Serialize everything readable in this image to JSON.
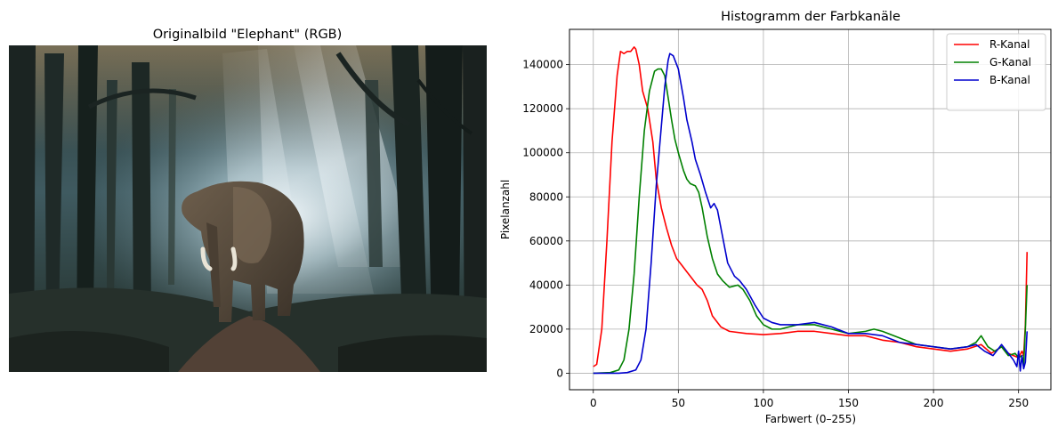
{
  "left_panel": {
    "title": "Originalbild \"Elephant\" (RGB)"
  },
  "chart_data": {
    "type": "line",
    "title": "Histogramm der Farbkanäle",
    "xlabel": "Farbwert (0–255)",
    "ylabel": "Pixelanzahl",
    "xlim": [
      -14,
      269
    ],
    "ylim": [
      -7500,
      156000
    ],
    "xticks": [
      0,
      50,
      100,
      150,
      200,
      250
    ],
    "yticks": [
      0,
      20000,
      40000,
      60000,
      80000,
      100000,
      120000,
      140000
    ],
    "grid": true,
    "legend_position": "top-right",
    "series": [
      {
        "name": "R-Kanal",
        "color": "#ff0000",
        "points": [
          [
            0,
            3000
          ],
          [
            2,
            4000
          ],
          [
            5,
            20000
          ],
          [
            8,
            60000
          ],
          [
            11,
            105000
          ],
          [
            14,
            135000
          ],
          [
            16,
            146000
          ],
          [
            18,
            145000
          ],
          [
            20,
            146000
          ],
          [
            22,
            146000
          ],
          [
            24,
            148000
          ],
          [
            25,
            147000
          ],
          [
            27,
            140000
          ],
          [
            29,
            128000
          ],
          [
            32,
            120000
          ],
          [
            35,
            105000
          ],
          [
            37,
            88000
          ],
          [
            40,
            75000
          ],
          [
            43,
            66000
          ],
          [
            46,
            58000
          ],
          [
            49,
            52000
          ],
          [
            52,
            49000
          ],
          [
            55,
            46000
          ],
          [
            58,
            43000
          ],
          [
            61,
            40000
          ],
          [
            64,
            38000
          ],
          [
            67,
            33000
          ],
          [
            70,
            26000
          ],
          [
            75,
            21000
          ],
          [
            80,
            19000
          ],
          [
            90,
            18000
          ],
          [
            100,
            17500
          ],
          [
            110,
            18000
          ],
          [
            120,
            19000
          ],
          [
            130,
            19000
          ],
          [
            140,
            18000
          ],
          [
            150,
            17000
          ],
          [
            160,
            17000
          ],
          [
            170,
            15000
          ],
          [
            180,
            14000
          ],
          [
            190,
            12000
          ],
          [
            200,
            11000
          ],
          [
            210,
            10000
          ],
          [
            220,
            11000
          ],
          [
            228,
            13000
          ],
          [
            234,
            9000
          ],
          [
            240,
            12000
          ],
          [
            244,
            9000
          ],
          [
            247,
            8000
          ],
          [
            250,
            7000
          ],
          [
            252,
            10000
          ],
          [
            253,
            8000
          ],
          [
            254,
            22000
          ],
          [
            255,
            55000
          ]
        ]
      },
      {
        "name": "G-Kanal",
        "color": "#008000",
        "points": [
          [
            0,
            0
          ],
          [
            10,
            300
          ],
          [
            15,
            1500
          ],
          [
            18,
            6000
          ],
          [
            21,
            20000
          ],
          [
            24,
            45000
          ],
          [
            27,
            80000
          ],
          [
            30,
            110000
          ],
          [
            33,
            128000
          ],
          [
            36,
            137000
          ],
          [
            38,
            138000
          ],
          [
            40,
            138000
          ],
          [
            42,
            135000
          ],
          [
            44,
            125000
          ],
          [
            46,
            115000
          ],
          [
            48,
            106000
          ],
          [
            50,
            100000
          ],
          [
            53,
            92000
          ],
          [
            55,
            88000
          ],
          [
            57,
            86000
          ],
          [
            60,
            85000
          ],
          [
            62,
            82000
          ],
          [
            64,
            75000
          ],
          [
            67,
            62000
          ],
          [
            70,
            52000
          ],
          [
            73,
            45000
          ],
          [
            76,
            42000
          ],
          [
            80,
            39000
          ],
          [
            85,
            40000
          ],
          [
            88,
            38000
          ],
          [
            92,
            33000
          ],
          [
            96,
            26000
          ],
          [
            100,
            22000
          ],
          [
            105,
            20000
          ],
          [
            110,
            20000
          ],
          [
            115,
            21000
          ],
          [
            120,
            22000
          ],
          [
            130,
            22000
          ],
          [
            140,
            20000
          ],
          [
            150,
            18000
          ],
          [
            160,
            19000
          ],
          [
            165,
            20000
          ],
          [
            170,
            19000
          ],
          [
            180,
            16000
          ],
          [
            190,
            13000
          ],
          [
            200,
            12000
          ],
          [
            210,
            11000
          ],
          [
            220,
            12000
          ],
          [
            225,
            14000
          ],
          [
            228,
            17000
          ],
          [
            232,
            12000
          ],
          [
            236,
            10000
          ],
          [
            240,
            12000
          ],
          [
            244,
            8000
          ],
          [
            248,
            9000
          ],
          [
            250,
            7000
          ],
          [
            252,
            8000
          ],
          [
            253,
            4000
          ],
          [
            254,
            20000
          ],
          [
            255,
            40000
          ]
        ]
      },
      {
        "name": "B-Kanal",
        "color": "#0000cd",
        "points": [
          [
            0,
            0
          ],
          [
            15,
            0
          ],
          [
            20,
            300
          ],
          [
            25,
            1500
          ],
          [
            28,
            6000
          ],
          [
            31,
            20000
          ],
          [
            34,
            50000
          ],
          [
            37,
            85000
          ],
          [
            40,
            112000
          ],
          [
            42,
            130000
          ],
          [
            44,
            142000
          ],
          [
            45,
            145000
          ],
          [
            47,
            144000
          ],
          [
            50,
            138000
          ],
          [
            53,
            125000
          ],
          [
            55,
            115000
          ],
          [
            58,
            105000
          ],
          [
            60,
            97000
          ],
          [
            63,
            90000
          ],
          [
            66,
            82000
          ],
          [
            69,
            75000
          ],
          [
            71,
            77000
          ],
          [
            73,
            74000
          ],
          [
            76,
            62000
          ],
          [
            79,
            50000
          ],
          [
            83,
            44000
          ],
          [
            86,
            42000
          ],
          [
            90,
            38000
          ],
          [
            95,
            31000
          ],
          [
            100,
            25000
          ],
          [
            105,
            23000
          ],
          [
            110,
            22000
          ],
          [
            120,
            22000
          ],
          [
            130,
            23000
          ],
          [
            140,
            21000
          ],
          [
            150,
            18000
          ],
          [
            160,
            18000
          ],
          [
            170,
            17000
          ],
          [
            180,
            14000
          ],
          [
            190,
            13000
          ],
          [
            200,
            12000
          ],
          [
            210,
            11000
          ],
          [
            220,
            12000
          ],
          [
            225,
            13000
          ],
          [
            230,
            10000
          ],
          [
            235,
            8000
          ],
          [
            240,
            13000
          ],
          [
            244,
            9000
          ],
          [
            247,
            6000
          ],
          [
            249,
            3000
          ],
          [
            250,
            10000
          ],
          [
            251,
            1000
          ],
          [
            252,
            8000
          ],
          [
            253,
            2000
          ],
          [
            254,
            5000
          ],
          [
            255,
            19000
          ]
        ]
      }
    ]
  }
}
